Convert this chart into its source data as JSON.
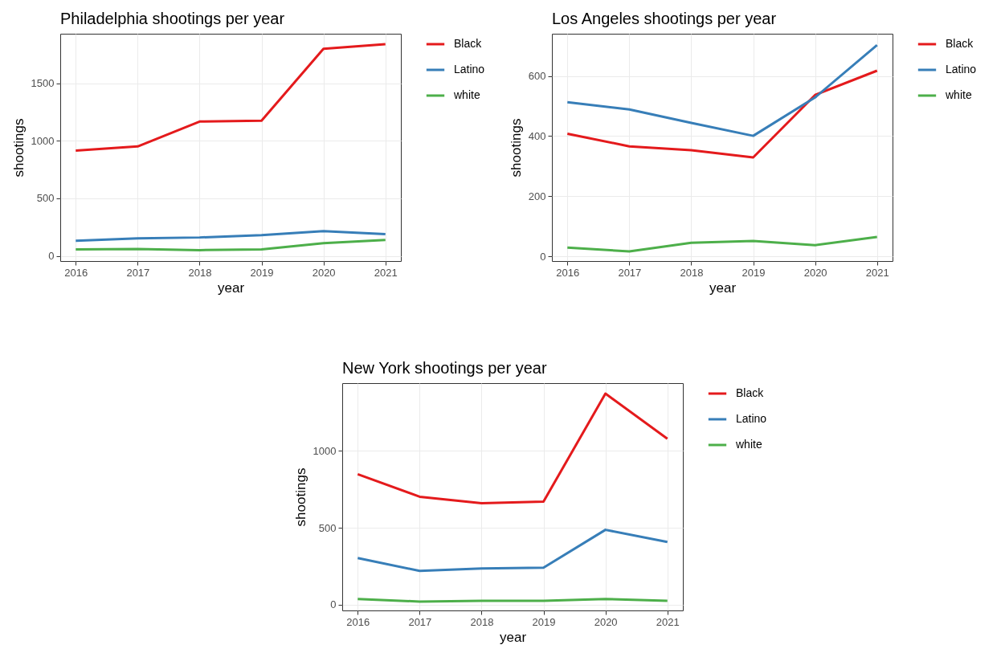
{
  "chart_data": [
    {
      "type": "line",
      "title": "Philadelphia shootings per year",
      "xlabel": "year",
      "ylabel": "shootings",
      "x": [
        2016,
        2017,
        2018,
        2019,
        2020,
        2021
      ],
      "xlim": [
        2015.75,
        2021.25
      ],
      "xticks": [
        2016,
        2017,
        2018,
        2019,
        2020,
        2021
      ],
      "ylim": [
        -45,
        1930
      ],
      "yticks": [
        0,
        500,
        1000,
        1500
      ],
      "grid": true,
      "legend": "right",
      "series": [
        {
          "name": "Black",
          "color": "#e41a1c",
          "values": [
            915,
            951,
            1167,
            1175,
            1799,
            1840
          ]
        },
        {
          "name": "Latino",
          "color": "#377eb8",
          "values": [
            132,
            153,
            160,
            180,
            215,
            188
          ]
        },
        {
          "name": "white",
          "color": "#4daf4a",
          "values": [
            56,
            60,
            50,
            56,
            111,
            139
          ]
        }
      ]
    },
    {
      "type": "line",
      "title": "Los Angeles shootings per year",
      "xlabel": "year",
      "ylabel": "shootings",
      "x": [
        2016,
        2017,
        2018,
        2019,
        2020,
        2021
      ],
      "xlim": [
        2015.75,
        2021.25
      ],
      "xticks": [
        2016,
        2017,
        2018,
        2019,
        2020,
        2021
      ],
      "ylim": [
        -16,
        741
      ],
      "yticks": [
        0,
        200,
        400,
        600
      ],
      "grid": true,
      "legend": "right",
      "series": [
        {
          "name": "Black",
          "color": "#e41a1c",
          "values": [
            408,
            366,
            353,
            329,
            537,
            618
          ]
        },
        {
          "name": "Latino",
          "color": "#377eb8",
          "values": [
            513,
            489,
            444,
            401,
            529,
            703
          ]
        },
        {
          "name": "white",
          "color": "#4daf4a",
          "values": [
            29,
            16,
            45,
            51,
            37,
            64
          ]
        }
      ]
    },
    {
      "type": "line",
      "title": "New York shootings per year",
      "xlabel": "year",
      "ylabel": "shootings",
      "x": [
        2016,
        2017,
        2018,
        2019,
        2020,
        2021
      ],
      "xlim": [
        2015.75,
        2021.25
      ],
      "xticks": [
        2016,
        2017,
        2018,
        2019,
        2020,
        2021
      ],
      "ylim": [
        -37,
        1440
      ],
      "yticks": [
        0,
        500,
        1000
      ],
      "grid": true,
      "legend": "right",
      "series": [
        {
          "name": "Black",
          "color": "#e41a1c",
          "values": [
            848,
            702,
            660,
            670,
            1372,
            1079
          ]
        },
        {
          "name": "Latino",
          "color": "#377eb8",
          "values": [
            304,
            220,
            236,
            241,
            487,
            408
          ]
        },
        {
          "name": "white",
          "color": "#4daf4a",
          "values": [
            37,
            21,
            26,
            26,
            37,
            26
          ]
        }
      ]
    }
  ]
}
